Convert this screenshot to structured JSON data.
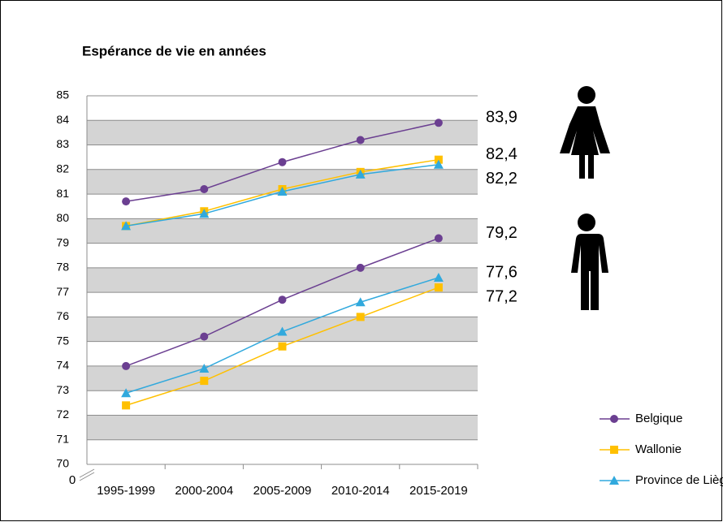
{
  "chart_data": {
    "type": "line",
    "title": "Espérance de vie en années",
    "categories": [
      "1995-1999",
      "2000-2004",
      "2005-2009",
      "2010-2014",
      "2015-2019"
    ],
    "ylim": [
      70,
      85
    ],
    "yticks": [
      70,
      71,
      72,
      73,
      74,
      75,
      76,
      77,
      78,
      79,
      80,
      81,
      82,
      83,
      84,
      85
    ],
    "axis_break_label": "0",
    "grid": true,
    "legend": "bottom-right",
    "series": [
      {
        "name": "Belgique",
        "color": "#6b3f91",
        "marker": "circle",
        "women": [
          80.7,
          81.2,
          82.3,
          83.2,
          83.9
        ],
        "women_labels": [
          null,
          null,
          null,
          null,
          "83,9"
        ],
        "men": [
          74.0,
          75.2,
          76.7,
          78.0,
          79.2
        ],
        "men_labels": [
          null,
          null,
          null,
          null,
          "79,2"
        ]
      },
      {
        "name": "Wallonie",
        "color": "#ffc000",
        "marker": "square",
        "women": [
          79.7,
          80.3,
          81.2,
          81.9,
          82.4
        ],
        "women_labels": [
          null,
          null,
          null,
          null,
          "82,4"
        ],
        "men": [
          72.4,
          73.4,
          74.8,
          76.0,
          77.2
        ],
        "men_labels": [
          null,
          null,
          null,
          null,
          "77,2"
        ]
      },
      {
        "name": "Province de Liège",
        "color": "#31a9dd",
        "marker": "triangle",
        "women": [
          79.7,
          80.2,
          81.1,
          81.8,
          82.2
        ],
        "women_labels": [
          null,
          null,
          null,
          null,
          "82,2"
        ],
        "men": [
          72.9,
          73.9,
          75.4,
          76.6,
          77.6
        ],
        "men_labels": [
          null,
          null,
          null,
          null,
          "77,6"
        ]
      }
    ]
  }
}
